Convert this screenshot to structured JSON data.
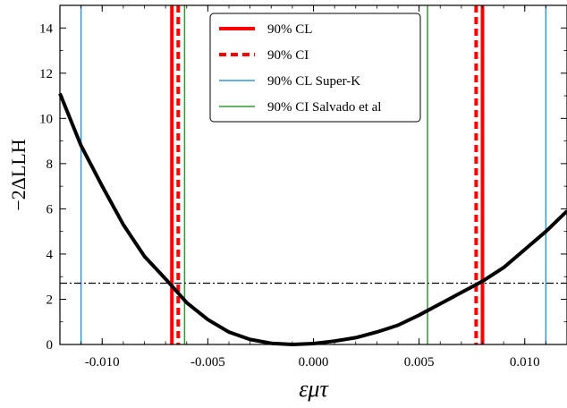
{
  "chart_data": {
    "type": "line",
    "title": "",
    "xlabel": "εμτ",
    "ylabel": "−2ΔLLH",
    "xlim": [
      -0.012,
      0.012
    ],
    "ylim": [
      0,
      15
    ],
    "grid": false,
    "legend_position": "top-center",
    "x_ticks": [
      -0.01,
      -0.005,
      0.0,
      0.005,
      0.01
    ],
    "x_tick_labels": [
      "-0.010",
      "-0.005",
      "0.000",
      "0.005",
      "0.010"
    ],
    "y_ticks": [
      0,
      2,
      4,
      6,
      8,
      10,
      12,
      14
    ],
    "y_tick_labels": [
      "0",
      "2",
      "4",
      "6",
      "8",
      "10",
      "12",
      "14"
    ],
    "curve": {
      "color": "#000000",
      "x": [
        -0.012,
        -0.011,
        -0.01,
        -0.009,
        -0.008,
        -0.007,
        -0.006,
        -0.005,
        -0.004,
        -0.003,
        -0.002,
        -0.001,
        0.0,
        0.001,
        0.002,
        0.003,
        0.004,
        0.005,
        0.006,
        0.007,
        0.008,
        0.009,
        0.01,
        0.011,
        0.012
      ],
      "y": [
        11.1,
        8.8,
        7.0,
        5.3,
        3.9,
        2.9,
        1.85,
        1.1,
        0.55,
        0.22,
        0.05,
        0.0,
        0.04,
        0.15,
        0.3,
        0.55,
        0.85,
        1.3,
        1.8,
        2.3,
        2.8,
        3.4,
        4.2,
        5.0,
        5.9
      ]
    },
    "threshold_line": {
      "y": 2.71,
      "color": "#000000",
      "style": "dashdot"
    },
    "series": [
      {
        "name": "90% CL",
        "color": "#ff0000",
        "style": "solid-thick",
        "x_values": [
          -0.0067,
          0.008
        ]
      },
      {
        "name": "90% CI",
        "color": "#ff0000",
        "style": "dashed-thick",
        "x_values": [
          -0.0064,
          0.0077
        ]
      },
      {
        "name": "90% CL Super-K",
        "color": "#3399cc",
        "style": "solid-thin",
        "x_values": [
          -0.011,
          0.011
        ]
      },
      {
        "name": "90% CI Salvado et al",
        "color": "#339933",
        "style": "solid-thin",
        "x_values": [
          -0.0061,
          0.0054
        ]
      }
    ]
  }
}
